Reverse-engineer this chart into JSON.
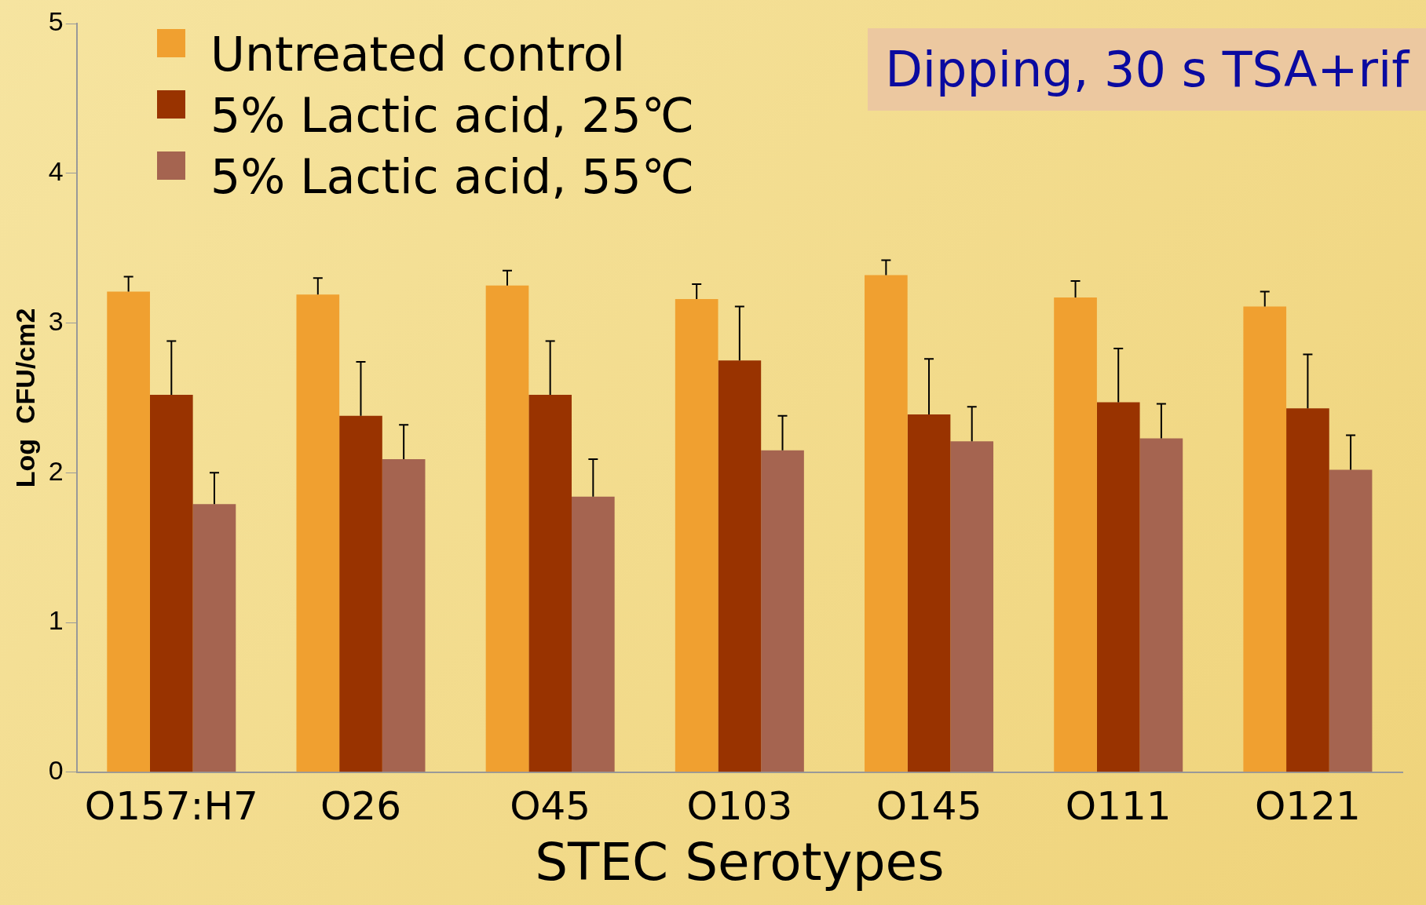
{
  "chart_data": {
    "type": "bar",
    "xlabel": "STEC Serotypes",
    "ylabel": "Log  CFU/cm2",
    "annotations": [
      "Dipping, 30 s TSA+rif"
    ],
    "categories": [
      "O157:H7",
      "O26",
      "O45",
      "O103",
      "O145",
      "O111",
      "O121"
    ],
    "series": [
      {
        "name": "Untreated control",
        "color": "#f0a030",
        "values": [
          3.21,
          3.19,
          3.25,
          3.16,
          3.32,
          3.17,
          3.11
        ],
        "errors": [
          0.1,
          0.11,
          0.1,
          0.1,
          0.1,
          0.11,
          0.1
        ]
      },
      {
        "name": "5% Lactic acid, 25℃",
        "color": "#993300",
        "values": [
          2.52,
          2.38,
          2.52,
          2.75,
          2.39,
          2.47,
          2.43
        ],
        "errors": [
          0.36,
          0.36,
          0.36,
          0.36,
          0.37,
          0.36,
          0.36
        ]
      },
      {
        "name": "5% Lactic acid, 55℃",
        "color": "#a56450",
        "values": [
          1.79,
          2.09,
          1.84,
          2.15,
          2.21,
          2.23,
          2.02
        ],
        "errors": [
          0.21,
          0.23,
          0.25,
          0.23,
          0.23,
          0.23,
          0.23
        ]
      }
    ],
    "ylim": [
      0,
      5
    ],
    "yticks": [
      0,
      1,
      2,
      3,
      4,
      5
    ],
    "grid": false,
    "legend": "top left"
  }
}
